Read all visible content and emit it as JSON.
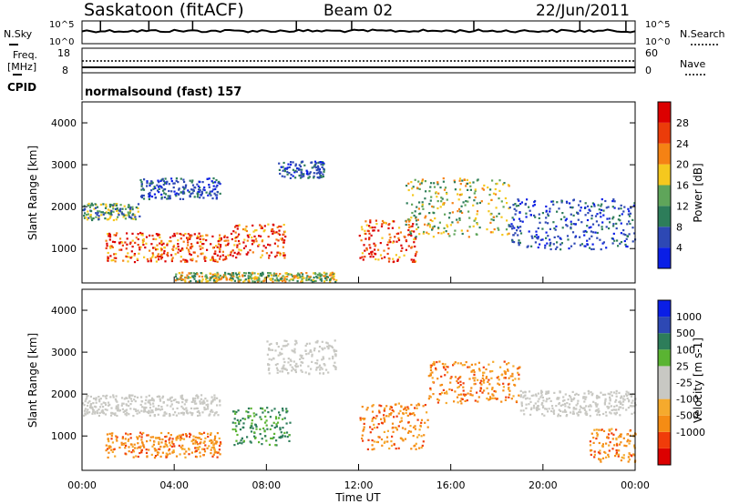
{
  "header": {
    "station": "Saskatoon (fitACF)",
    "beam": "Beam 02",
    "date": "22/Jun/2011"
  },
  "noise_panel": {
    "left_label": "N.Sky",
    "right_label": "N.Search",
    "ticks_left": [
      "10^5",
      "10^0"
    ],
    "ticks_right": [
      "10^5",
      "10^0"
    ]
  },
  "freq_panel": {
    "label_line1": "Freq.",
    "label_line2": "[MHz]",
    "ticks_left": [
      "18",
      "8"
    ],
    "ticks_right": [
      "60",
      "0"
    ],
    "right_label": "Nave"
  },
  "cpid_panel": {
    "label": "CPID",
    "text": "normalsound (fast) 157"
  },
  "colors": {
    "power": [
      "#0a1ee6",
      "#2d48b4",
      "#2d7d5a",
      "#5fa55a",
      "#f5c81e",
      "#f58214",
      "#eb3c0a",
      "#dc0000"
    ],
    "velocity": [
      "#dc0000",
      "#f03c0a",
      "#f58c14",
      "#f5aa2d",
      "#c8c8c3",
      "#c8c8c3",
      "#5ab432",
      "#2d7d5a",
      "#2d48b4",
      "#0a1ee6"
    ]
  },
  "chart_data": [
    {
      "type": "heatmap",
      "title": "",
      "ylabel": "Slant Range [km]",
      "ylim": [
        180,
        4500
      ],
      "yticks": [
        1000,
        2000,
        3000,
        4000
      ],
      "xlim": [
        0,
        24
      ],
      "colorbar": {
        "label": "Power [dB]",
        "range": [
          0,
          30
        ],
        "ticks": [
          "4",
          "8",
          "12",
          "16",
          "20",
          "24",
          "28"
        ]
      },
      "bands": [
        {
          "t0": 0,
          "t1": 2.5,
          "r0": 1700,
          "r1": 2100,
          "level": "weak-moderate"
        },
        {
          "t0": 1.0,
          "t1": 6.5,
          "r0": 700,
          "r1": 1400,
          "level": "strong"
        },
        {
          "t0": 2.5,
          "t1": 6.0,
          "r0": 2200,
          "r1": 2700,
          "level": "weak"
        },
        {
          "t0": 6.5,
          "t1": 8.8,
          "r0": 800,
          "r1": 1600,
          "level": "strong"
        },
        {
          "t0": 8.5,
          "t1": 10.5,
          "r0": 2700,
          "r1": 3100,
          "level": "weak"
        },
        {
          "t0": 12.0,
          "t1": 14.5,
          "r0": 700,
          "r1": 1700,
          "level": "strong"
        },
        {
          "t0": 14.0,
          "t1": 18.5,
          "r0": 1300,
          "r1": 2700,
          "level": "moderate"
        },
        {
          "t0": 18.5,
          "t1": 24,
          "r0": 1000,
          "r1": 2200,
          "level": "weak"
        },
        {
          "t0": 4.0,
          "t1": 11.0,
          "r0": 200,
          "r1": 450,
          "level": "moderate"
        }
      ]
    },
    {
      "type": "heatmap",
      "title": "",
      "ylabel": "Slant Range [km]",
      "xlabel": "Time UT",
      "ylim": [
        180,
        4500
      ],
      "yticks": [
        1000,
        2000,
        3000,
        4000
      ],
      "xlim": [
        0,
        24
      ],
      "xticks": [
        "00:00",
        "04:00",
        "08:00",
        "12:00",
        "16:00",
        "20:00",
        "00:00"
      ],
      "colorbar": {
        "label": "Velocity [m s-1]",
        "ticks": [
          "1000",
          "500",
          "100",
          "25",
          "-25",
          "-100",
          "-500",
          "-1000"
        ]
      },
      "bands": [
        {
          "t0": 0,
          "t1": 6.0,
          "r0": 1500,
          "r1": 2000,
          "level": "ground"
        },
        {
          "t0": 1.0,
          "t1": 6.0,
          "r0": 500,
          "r1": 1100,
          "level": "negative"
        },
        {
          "t0": 6.5,
          "t1": 9.0,
          "r0": 800,
          "r1": 1700,
          "level": "positive"
        },
        {
          "t0": 8.0,
          "t1": 11.0,
          "r0": 2500,
          "r1": 3300,
          "level": "ground"
        },
        {
          "t0": 12.0,
          "t1": 15.0,
          "r0": 700,
          "r1": 1800,
          "level": "negative"
        },
        {
          "t0": 15.0,
          "t1": 19.0,
          "r0": 1800,
          "r1": 2800,
          "level": "negative"
        },
        {
          "t0": 19.0,
          "t1": 24,
          "r0": 1500,
          "r1": 2100,
          "level": "ground"
        },
        {
          "t0": 22.0,
          "t1": 24,
          "r0": 400,
          "r1": 1200,
          "level": "negative"
        }
      ]
    }
  ]
}
